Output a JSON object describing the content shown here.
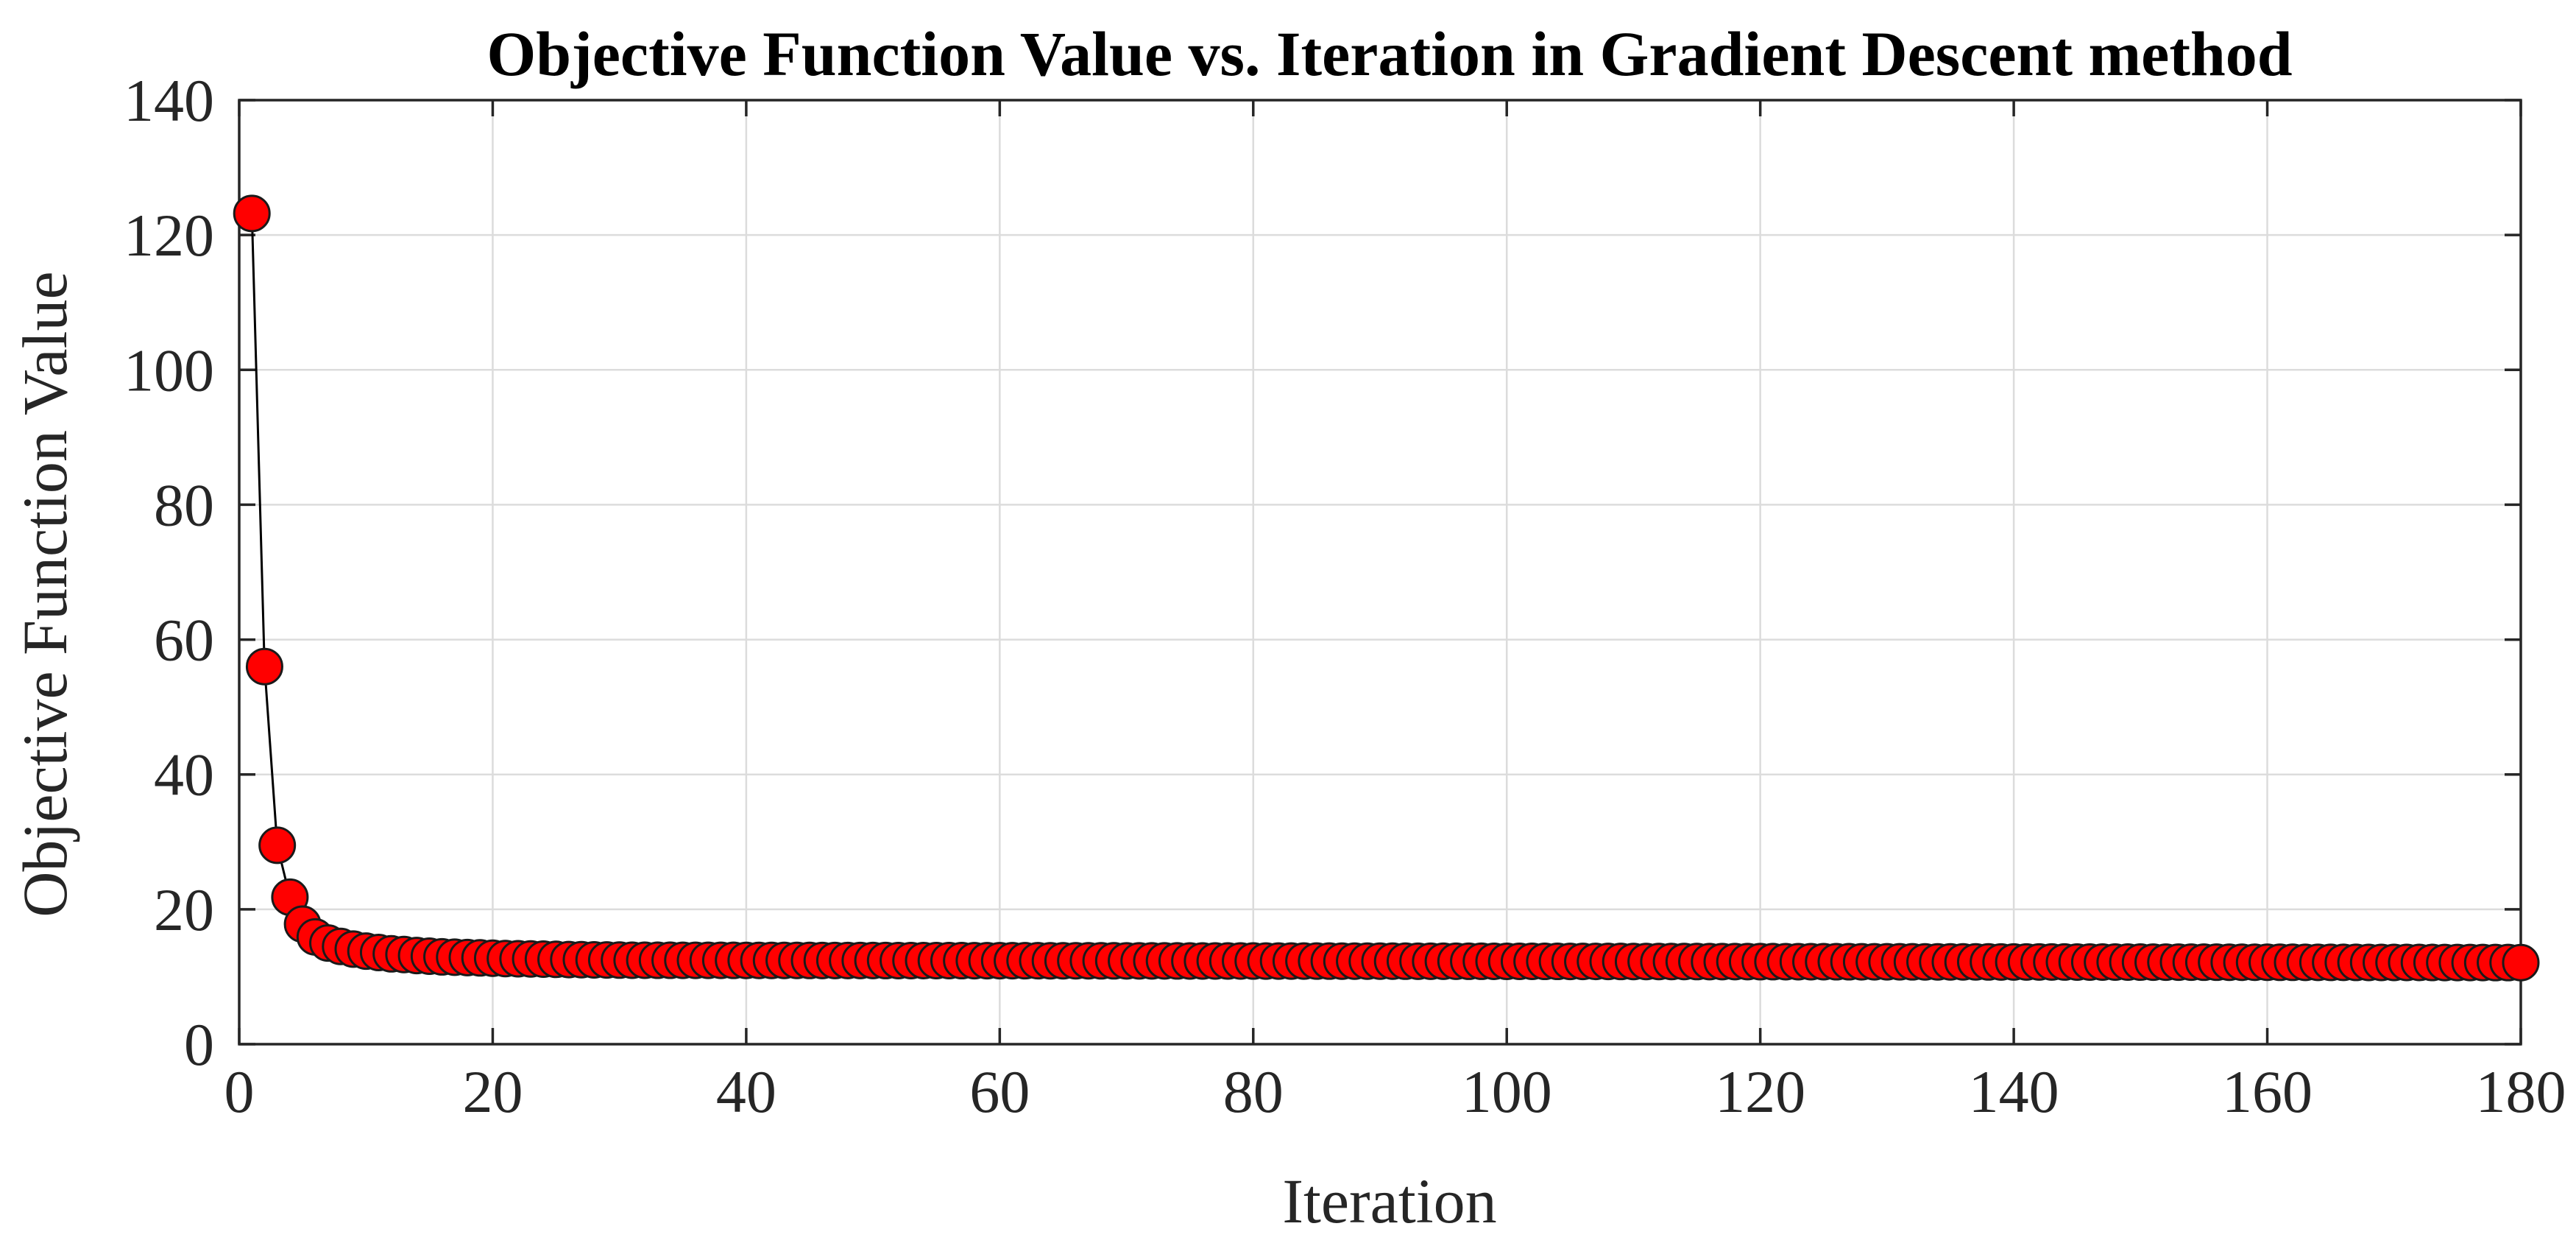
{
  "chart_data": {
    "type": "line",
    "title": "Objective Function Value vs. Iteration in Gradient Descent method",
    "xlabel": "Iteration",
    "ylabel": "Objective Function Value",
    "xlim": [
      0,
      180
    ],
    "ylim": [
      0,
      140
    ],
    "xticks": [
      0,
      20,
      40,
      60,
      80,
      100,
      120,
      140,
      160,
      180
    ],
    "yticks": [
      0,
      20,
      40,
      60,
      80,
      100,
      120,
      140
    ],
    "grid": true,
    "legend": "none",
    "colors": {
      "marker_fill": "#ff0000",
      "marker_edge": "#1a1a1a",
      "line": "#000000"
    },
    "series": [
      {
        "x_start": 1,
        "x_end": 180,
        "head_values": [
          123.2,
          56.0,
          29.5,
          21.8,
          17.8,
          15.9,
          15.0,
          14.5,
          14.1,
          13.8,
          13.6,
          13.4,
          13.3,
          13.15,
          13.05,
          12.95,
          12.9,
          12.85,
          12.8,
          12.75,
          12.7,
          12.67,
          12.64,
          12.61,
          12.58,
          12.55,
          12.53,
          12.51,
          12.49,
          12.47
        ],
        "tail_start_value": 12.45,
        "tail_end_value": 12.1
      }
    ]
  }
}
